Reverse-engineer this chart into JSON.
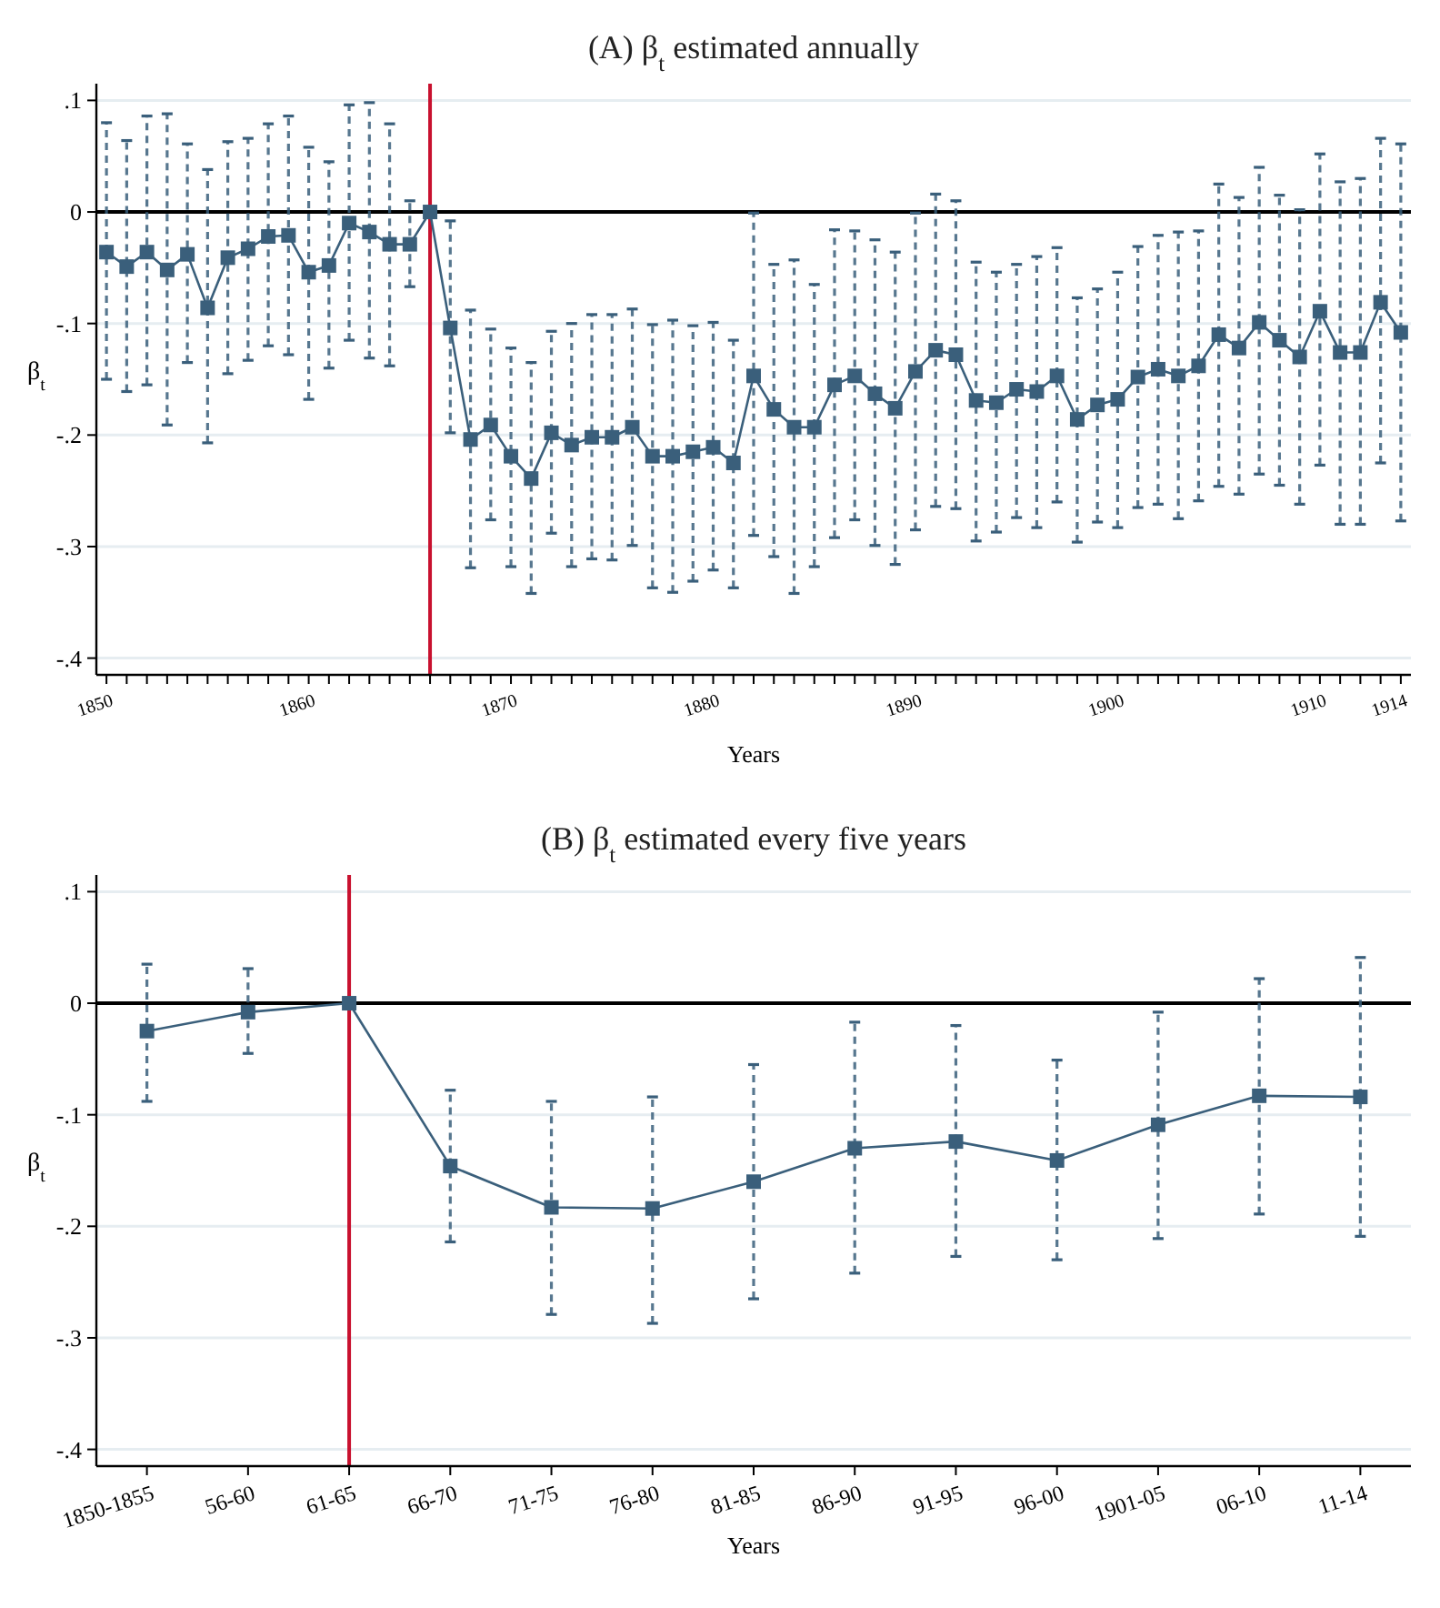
{
  "chart_data": [
    {
      "type": "line",
      "title": "(A) β$_{t}$ estimated annually",
      "xlabel": "Years",
      "ylabel": "β$_{t}$",
      "grid": "y",
      "marker": "square",
      "line_style": "solid",
      "x": [
        1850,
        1851,
        1852,
        1853,
        1854,
        1855,
        1856,
        1857,
        1858,
        1859,
        1860,
        1861,
        1862,
        1863,
        1864,
        1865,
        1866,
        1867,
        1868,
        1869,
        1870,
        1871,
        1872,
        1873,
        1874,
        1875,
        1876,
        1877,
        1878,
        1879,
        1880,
        1881,
        1882,
        1883,
        1884,
        1885,
        1886,
        1887,
        1888,
        1889,
        1890,
        1891,
        1892,
        1893,
        1894,
        1895,
        1896,
        1897,
        1898,
        1899,
        1900,
        1901,
        1902,
        1903,
        1904,
        1905,
        1906,
        1907,
        1908,
        1909,
        1910,
        1911,
        1912,
        1913,
        1914
      ],
      "xlim": [
        1849.5,
        1914.5
      ],
      "xticks": [
        1850,
        {
          "value": 1851,
          "label": null
        },
        {
          "value": 1852,
          "label": null
        },
        {
          "value": 1853,
          "label": null
        },
        {
          "value": 1854,
          "label": null
        },
        {
          "value": 1855,
          "label": null
        },
        {
          "value": 1856,
          "label": null
        },
        {
          "value": 1857,
          "label": null
        },
        {
          "value": 1858,
          "label": null
        },
        {
          "value": 1859,
          "label": null
        },
        1860,
        {
          "value": 1861,
          "label": null
        },
        {
          "value": 1862,
          "label": null
        },
        {
          "value": 1863,
          "label": null
        },
        {
          "value": 1864,
          "label": null
        },
        {
          "value": 1865,
          "label": null
        },
        {
          "value": 1866,
          "label": null
        },
        {
          "value": 1867,
          "label": null
        },
        {
          "value": 1868,
          "label": null
        },
        {
          "value": 1869,
          "label": null
        },
        1870,
        {
          "value": 1871,
          "label": null
        },
        {
          "value": 1872,
          "label": null
        },
        {
          "value": 1873,
          "label": null
        },
        {
          "value": 1874,
          "label": null
        },
        {
          "value": 1875,
          "label": null
        },
        {
          "value": 1876,
          "label": null
        },
        {
          "value": 1877,
          "label": null
        },
        {
          "value": 1878,
          "label": null
        },
        {
          "value": 1879,
          "label": null
        },
        1880,
        {
          "value": 1881,
          "label": null
        },
        {
          "value": 1882,
          "label": null
        },
        {
          "value": 1883,
          "label": null
        },
        {
          "value": 1884,
          "label": null
        },
        {
          "value": 1885,
          "label": null
        },
        {
          "value": 1886,
          "label": null
        },
        {
          "value": 1887,
          "label": null
        },
        {
          "value": 1888,
          "label": null
        },
        {
          "value": 1889,
          "label": null
        },
        1890,
        {
          "value": 1891,
          "label": null
        },
        {
          "value": 1892,
          "label": null
        },
        {
          "value": 1893,
          "label": null
        },
        {
          "value": 1894,
          "label": null
        },
        {
          "value": 1895,
          "label": null
        },
        {
          "value": 1896,
          "label": null
        },
        {
          "value": 1897,
          "label": null
        },
        {
          "value": 1898,
          "label": null
        },
        {
          "value": 1899,
          "label": null
        },
        1900,
        {
          "value": 1901,
          "label": null
        },
        {
          "value": 1902,
          "label": null
        },
        {
          "value": 1903,
          "label": null
        },
        {
          "value": 1904,
          "label": null
        },
        {
          "value": 1905,
          "label": null
        },
        {
          "value": 1906,
          "label": null
        },
        {
          "value": 1907,
          "label": null
        },
        {
          "value": 1908,
          "label": null
        },
        {
          "value": 1909,
          "label": null
        },
        1910,
        {
          "value": 1911,
          "label": null
        },
        {
          "value": 1912,
          "label": null
        },
        {
          "value": 1913,
          "label": null
        },
        1914
      ],
      "ylim": [
        -0.415,
        0.115
      ],
      "yticks": [
        {
          "value": 0.1,
          "label": ".1"
        },
        0,
        {
          "value": -0.1,
          "label": "-.1"
        },
        {
          "value": -0.2,
          "label": "-.2"
        },
        {
          "value": -0.3,
          "label": "-.3"
        },
        {
          "value": -0.4,
          "label": "-.4"
        }
      ],
      "ref_lines": [
        {
          "axis": "y",
          "value": 0,
          "color": "#000000"
        },
        {
          "axis": "x",
          "value": 1866,
          "color": "#c8102e"
        }
      ],
      "series": [
        {
          "color": "#3a5f7b",
          "values": [
            -0.036,
            -0.049,
            -0.036,
            -0.052,
            -0.038,
            -0.086,
            -0.041,
            -0.033,
            -0.022,
            -0.021,
            -0.054,
            -0.048,
            -0.01,
            -0.018,
            -0.029,
            -0.029,
            0,
            -0.104,
            -0.204,
            -0.191,
            -0.219,
            -0.239,
            -0.198,
            -0.209,
            -0.202,
            -0.202,
            -0.193,
            -0.219,
            -0.219,
            -0.215,
            -0.211,
            -0.225,
            -0.147,
            -0.177,
            -0.193,
            -0.193,
            -0.155,
            -0.147,
            -0.163,
            -0.176,
            -0.143,
            -0.124,
            -0.128,
            -0.169,
            -0.171,
            -0.159,
            -0.161,
            -0.147,
            -0.186,
            -0.173,
            -0.168,
            -0.148,
            -0.141,
            -0.147,
            -0.138,
            -0.11,
            -0.122,
            -0.099,
            -0.115,
            -0.13,
            -0.089,
            -0.126,
            -0.126,
            -0.081,
            -0.108
          ],
          "errors": [
            [
              -0.15,
              0.08
            ],
            [
              -0.161,
              0.064
            ],
            [
              -0.155,
              0.086
            ],
            [
              -0.191,
              0.088
            ],
            [
              -0.135,
              0.061
            ],
            [
              -0.207,
              0.038
            ],
            [
              -0.145,
              0.063
            ],
            [
              -0.133,
              0.066
            ],
            [
              -0.12,
              0.079
            ],
            [
              -0.128,
              0.086
            ],
            [
              -0.168,
              0.058
            ],
            [
              -0.14,
              0.045
            ],
            [
              -0.115,
              0.096
            ],
            [
              -0.131,
              0.098
            ],
            [
              -0.138,
              0.079
            ],
            [
              -0.067,
              0.01
            ],
            null,
            [
              -0.198,
              -0.008
            ],
            [
              -0.319,
              -0.088
            ],
            [
              -0.276,
              -0.105
            ],
            [
              -0.318,
              -0.122
            ],
            [
              -0.342,
              -0.135
            ],
            [
              -0.288,
              -0.107
            ],
            [
              -0.318,
              -0.1
            ],
            [
              -0.311,
              -0.092
            ],
            [
              -0.312,
              -0.092
            ],
            [
              -0.299,
              -0.087
            ],
            [
              -0.337,
              -0.101
            ],
            [
              -0.341,
              -0.097
            ],
            [
              -0.331,
              -0.102
            ],
            [
              -0.321,
              -0.099
            ],
            [
              -0.337,
              -0.115
            ],
            [
              -0.29,
              -0.001
            ],
            [
              -0.309,
              -0.047
            ],
            [
              -0.342,
              -0.043
            ],
            [
              -0.318,
              -0.065
            ],
            [
              -0.292,
              -0.016
            ],
            [
              -0.276,
              -0.017
            ],
            [
              -0.299,
              -0.025
            ],
            [
              -0.316,
              -0.036
            ],
            [
              -0.285,
              -0.001
            ],
            [
              -0.264,
              0.016
            ],
            [
              -0.266,
              0.01
            ],
            [
              -0.295,
              -0.045
            ],
            [
              -0.287,
              -0.054
            ],
            [
              -0.274,
              -0.047
            ],
            [
              -0.283,
              -0.04
            ],
            [
              -0.26,
              -0.032
            ],
            [
              -0.296,
              -0.077
            ],
            [
              -0.278,
              -0.069
            ],
            [
              -0.283,
              -0.054
            ],
            [
              -0.265,
              -0.031
            ],
            [
              -0.262,
              -0.021
            ],
            [
              -0.275,
              -0.018
            ],
            [
              -0.259,
              -0.017
            ],
            [
              -0.246,
              0.025
            ],
            [
              -0.253,
              0.013
            ],
            [
              -0.235,
              0.04
            ],
            [
              -0.245,
              0.015
            ],
            [
              -0.262,
              0.002
            ],
            [
              -0.227,
              0.052
            ],
            [
              -0.28,
              0.027
            ],
            [
              -0.28,
              0.03
            ],
            [
              -0.225,
              0.066
            ],
            [
              -0.277,
              0.061
            ]
          ]
        }
      ]
    },
    {
      "type": "line",
      "title": "(B) β$_{t}$ estimated every five years",
      "xlabel": "Years",
      "ylabel": "β$_{t}$",
      "grid": "y",
      "marker": "square",
      "line_style": "solid",
      "categories": [
        "1850-1855",
        "56-60",
        "61-65",
        "66-70",
        "71-75",
        "76-80",
        "81-85",
        "86-90",
        "91-95",
        "96-00",
        "1901-05",
        "06-10",
        "11-14"
      ],
      "ylim": [
        -0.415,
        0.115
      ],
      "yticks": [
        {
          "value": 0.1,
          "label": ".1"
        },
        0,
        {
          "value": -0.1,
          "label": "-.1"
        },
        {
          "value": -0.2,
          "label": "-.2"
        },
        {
          "value": -0.3,
          "label": "-.3"
        },
        {
          "value": -0.4,
          "label": "-.4"
        }
      ],
      "ref_lines": [
        {
          "axis": "y",
          "value": 0,
          "color": "#000000"
        },
        {
          "axis": "x",
          "value": "61-65",
          "color": "#c8102e"
        }
      ],
      "series": [
        {
          "color": "#3a5f7b",
          "values": [
            -0.025,
            -0.008,
            0,
            -0.146,
            -0.183,
            -0.184,
            -0.16,
            -0.13,
            -0.124,
            -0.141,
            -0.109,
            -0.083,
            -0.084
          ],
          "errors": [
            [
              -0.088,
              0.035
            ],
            [
              -0.045,
              0.031
            ],
            null,
            [
              -0.214,
              -0.078
            ],
            [
              -0.279,
              -0.088
            ],
            [
              -0.287,
              -0.084
            ],
            [
              -0.265,
              -0.055
            ],
            [
              -0.242,
              -0.017
            ],
            [
              -0.227,
              -0.02
            ],
            [
              -0.23,
              -0.051
            ],
            [
              -0.211,
              -0.008
            ],
            [
              -0.189,
              0.022
            ],
            [
              -0.209,
              0.041
            ]
          ]
        }
      ]
    }
  ]
}
